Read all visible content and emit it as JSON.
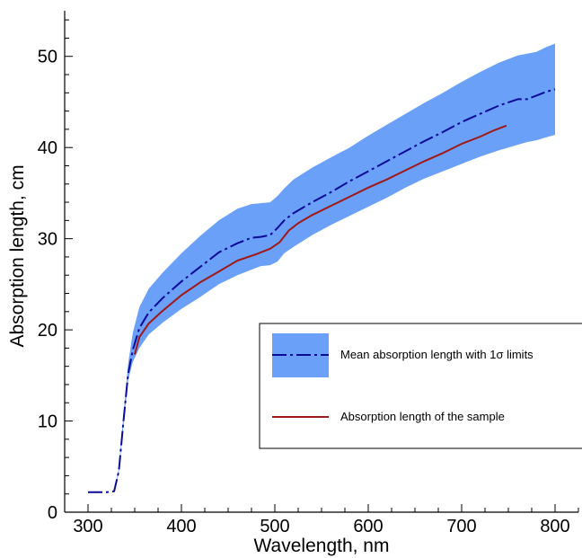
{
  "chart_data": {
    "type": "line",
    "xlabel": "Wavelength, nm",
    "ylabel": "Absorption length, cm",
    "xlim": [
      275,
      825
    ],
    "ylim": [
      0,
      55
    ],
    "xticks": [
      300,
      400,
      500,
      600,
      700,
      800
    ],
    "yticks": [
      0,
      10,
      20,
      30,
      40,
      50
    ],
    "grid": false,
    "legend_position": "right-middle",
    "series": [
      {
        "name": "Mean absorption length with 1σ limits",
        "style": "dash-dot line with shaded band",
        "color": "#0b0b9a",
        "band_color": "#6aa0f7",
        "x": [
          300,
          320,
          328,
          333,
          338,
          343,
          348,
          355,
          365,
          380,
          400,
          420,
          440,
          460,
          475,
          485,
          495,
          503,
          510,
          520,
          540,
          560,
          580,
          600,
          620,
          640,
          660,
          680,
          700,
          720,
          740,
          760,
          770,
          780,
          790,
          800
        ],
        "y": [
          2.2,
          2.2,
          2.3,
          4.5,
          10,
          15.2,
          17.8,
          20.2,
          21.9,
          23.5,
          25.3,
          26.9,
          28.5,
          29.5,
          30.1,
          30.2,
          30.4,
          31.2,
          32.0,
          32.8,
          34.0,
          35.1,
          36.3,
          37.4,
          38.5,
          39.6,
          40.7,
          41.7,
          42.8,
          43.7,
          44.6,
          45.3,
          45.3,
          45.7,
          46.1,
          46.4
        ],
        "lower": [
          2.2,
          2.2,
          2.3,
          4.3,
          9.5,
          14.5,
          16.5,
          18.0,
          19.5,
          20.8,
          22.3,
          23.6,
          25.0,
          26.0,
          26.6,
          27.0,
          27.1,
          27.5,
          28.4,
          29.1,
          30.4,
          31.5,
          32.5,
          33.5,
          34.5,
          35.6,
          36.6,
          37.4,
          38.2,
          39.0,
          39.7,
          40.3,
          40.6,
          40.8,
          41.1,
          41.4
        ],
        "upper": [
          2.2,
          2.2,
          2.3,
          4.8,
          10.7,
          16.3,
          19.7,
          22.5,
          24.5,
          26.3,
          28.4,
          30.3,
          32.0,
          33.3,
          33.8,
          33.9,
          34.0,
          34.7,
          35.5,
          36.5,
          37.8,
          38.9,
          40.0,
          41.3,
          42.5,
          43.7,
          44.9,
          46.0,
          47.2,
          48.3,
          49.3,
          50.1,
          50.3,
          50.5,
          51.0,
          51.4
        ]
      },
      {
        "name": "Absorption length of the sample",
        "style": "solid line",
        "color": "#a01818",
        "x": [
          350,
          355,
          365,
          380,
          400,
          420,
          440,
          460,
          480,
          495,
          505,
          515,
          525,
          540,
          560,
          580,
          600,
          620,
          640,
          660,
          680,
          700,
          720,
          735,
          748
        ],
        "y": [
          17.3,
          19.2,
          20.7,
          22.1,
          23.8,
          25.2,
          26.4,
          27.6,
          28.3,
          28.9,
          29.6,
          30.9,
          31.7,
          32.6,
          33.6,
          34.6,
          35.6,
          36.5,
          37.5,
          38.5,
          39.4,
          40.4,
          41.2,
          41.9,
          42.4
        ]
      }
    ]
  }
}
